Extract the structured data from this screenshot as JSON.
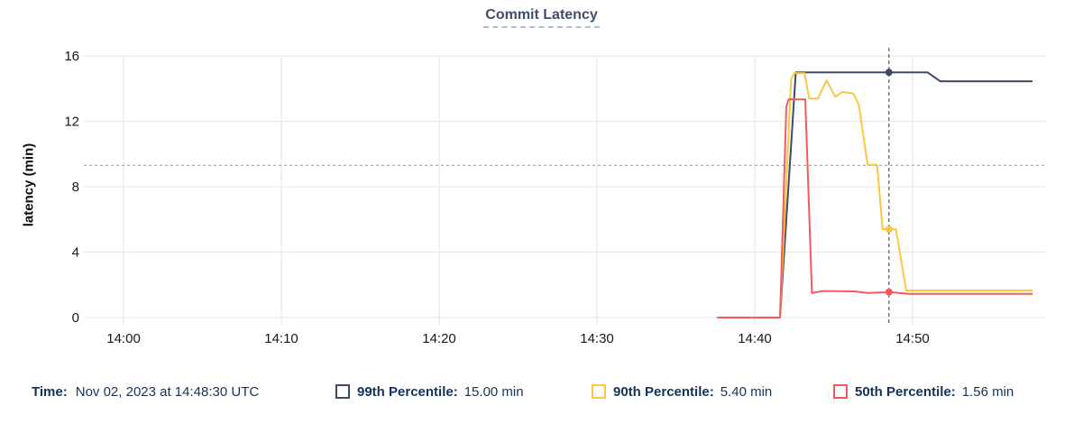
{
  "title": "Commit Latency",
  "y_axis_label": "latency (min)",
  "legend": {
    "time_label": "Time:",
    "time_value": "Nov 02, 2023 at 14:48:30 UTC",
    "items": [
      {
        "label": "99th Percentile:",
        "value": "15.00 min",
        "color": "#3d4b64"
      },
      {
        "label": "90th Percentile:",
        "value": "5.40 min",
        "color": "#fbc546"
      },
      {
        "label": "50th Percentile:",
        "value": "1.56 min",
        "color": "#f45b5e"
      }
    ]
  },
  "chart_data": {
    "type": "line",
    "title": "Commit Latency",
    "xlabel": "",
    "ylabel": "latency (min)",
    "x_unit": "minutes after 14:00 UTC",
    "xlim": [
      -1.43,
      58.4
    ],
    "ylim": [
      0,
      16.83
    ],
    "grid": true,
    "legend_position": "bottom",
    "x_ticks": [
      {
        "t": 0,
        "label": "14:00"
      },
      {
        "t": 10,
        "label": "14:10"
      },
      {
        "t": 20,
        "label": "14:20"
      },
      {
        "t": 30,
        "label": "14:30"
      },
      {
        "t": 40,
        "label": "14:40"
      },
      {
        "t": 50,
        "label": "14:50"
      }
    ],
    "y_ticks": [
      {
        "v": 0,
        "label": "0"
      },
      {
        "v": 4,
        "label": "4"
      },
      {
        "v": 8,
        "label": "8"
      },
      {
        "v": 12,
        "label": "12"
      },
      {
        "v": 16,
        "label": "16"
      }
    ],
    "threshold_line": {
      "value": 9.3,
      "color": "#9fb2ba",
      "style": "dotted"
    },
    "cursor": {
      "time_min": 48.5,
      "label": "14:48:30 UTC",
      "color": "#5f7487"
    },
    "series": [
      {
        "name": "99th Percentile",
        "color": "#3d4b64",
        "points": [
          [
            37.6,
            0
          ],
          [
            41.6,
            0
          ],
          [
            42.6,
            15.0
          ],
          [
            50.95,
            15.0
          ],
          [
            51.75,
            14.45
          ],
          [
            57.6,
            14.45
          ]
        ]
      },
      {
        "name": "90th Percentile",
        "color": "#fbc546",
        "points": [
          [
            37.6,
            0
          ],
          [
            41.6,
            0
          ],
          [
            42.3,
            14.55
          ],
          [
            42.5,
            14.95
          ],
          [
            43.15,
            14.95
          ],
          [
            43.45,
            13.4
          ],
          [
            44.0,
            13.4
          ],
          [
            44.55,
            14.5
          ],
          [
            45.1,
            13.5
          ],
          [
            45.55,
            13.8
          ],
          [
            46.25,
            13.7
          ],
          [
            46.6,
            13.0
          ],
          [
            47.15,
            9.35
          ],
          [
            47.75,
            9.35
          ],
          [
            48.1,
            5.4
          ],
          [
            48.95,
            5.4
          ],
          [
            49.6,
            1.65
          ],
          [
            57.6,
            1.65
          ]
        ]
      },
      {
        "name": "50th Percentile",
        "color": "#f45b5e",
        "points": [
          [
            37.6,
            0
          ],
          [
            41.6,
            0
          ],
          [
            42.0,
            12.9
          ],
          [
            42.15,
            13.35
          ],
          [
            43.2,
            13.35
          ],
          [
            43.62,
            1.5
          ],
          [
            44.3,
            1.62
          ],
          [
            46.3,
            1.6
          ],
          [
            47.2,
            1.5
          ],
          [
            48.6,
            1.56
          ],
          [
            49.7,
            1.45
          ],
          [
            57.6,
            1.45
          ]
        ]
      }
    ],
    "markers": [
      {
        "series": "99th Percentile",
        "t": 48.5,
        "value": 15.0,
        "color": "#3d4b64"
      },
      {
        "series": "90th Percentile",
        "t": 48.5,
        "value": 5.4,
        "color": "#fbc546"
      },
      {
        "series": "50th Percentile",
        "t": 48.5,
        "value": 1.56,
        "color": "#f45b5e"
      }
    ]
  }
}
